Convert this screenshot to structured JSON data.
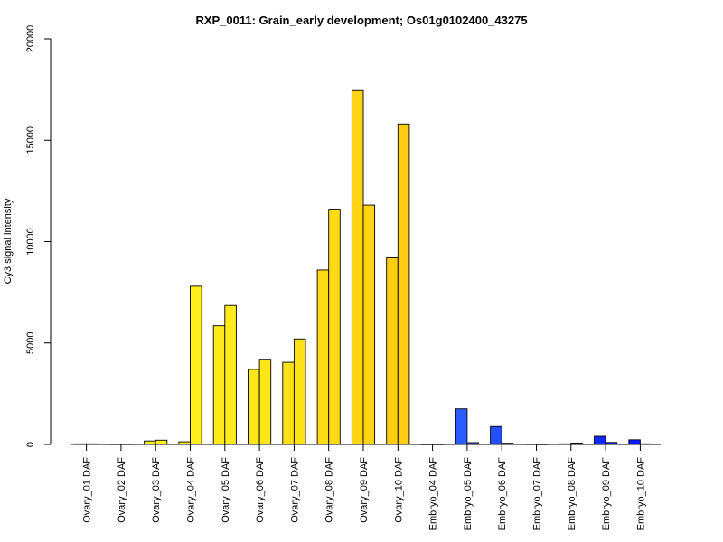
{
  "chart_data": {
    "type": "bar",
    "title": "RXP_0011: Grain_early development; Os01g0102400_43275",
    "xlabel": "",
    "ylabel": "Cy3 signal intensity",
    "ylim": [
      0,
      20000
    ],
    "yticks": [
      0,
      5000,
      10000,
      15000,
      20000
    ],
    "grid": false,
    "legend": "none",
    "categories": [
      "Ovary_01 DAF",
      "Ovary_02 DAF",
      "Ovary_03 DAF",
      "Ovary_04 DAF",
      "Ovary_05 DAF",
      "Ovary_06 DAF",
      "Ovary_07 DAF",
      "Ovary_08 DAF",
      "Ovary_09 DAF",
      "Ovary_10 DAF",
      "Embryo_04 DAF",
      "Embryo_05 DAF",
      "Embryo_06 DAF",
      "Embryo_07 DAF",
      "Embryo_08 DAF",
      "Embryo_09 DAF",
      "Embryo_10 DAF"
    ],
    "series": [
      {
        "values": [
          30,
          20,
          170,
          130,
          5850,
          3700,
          4050,
          8600,
          17450,
          9200,
          15,
          1750,
          880,
          20,
          30,
          400,
          230
        ]
      },
      {
        "values": [
          30,
          20,
          210,
          7800,
          6850,
          4200,
          5200,
          11600,
          11800,
          15800,
          15,
          90,
          60,
          15,
          70,
          100,
          30
        ]
      }
    ],
    "bar_colors": [
      "#FFF11E",
      "#FFF11E",
      "#FFF11E",
      "#FFEE1C",
      "#FFEA1B",
      "#FFE61A",
      "#FFE118",
      "#FFDB16",
      "#FFD414",
      "#FFCD12",
      "#2E68FF",
      "#2A5CFF",
      "#2350FF",
      "#1C44FF",
      "#1536FF",
      "#0E28FF",
      "#071AFF"
    ]
  }
}
